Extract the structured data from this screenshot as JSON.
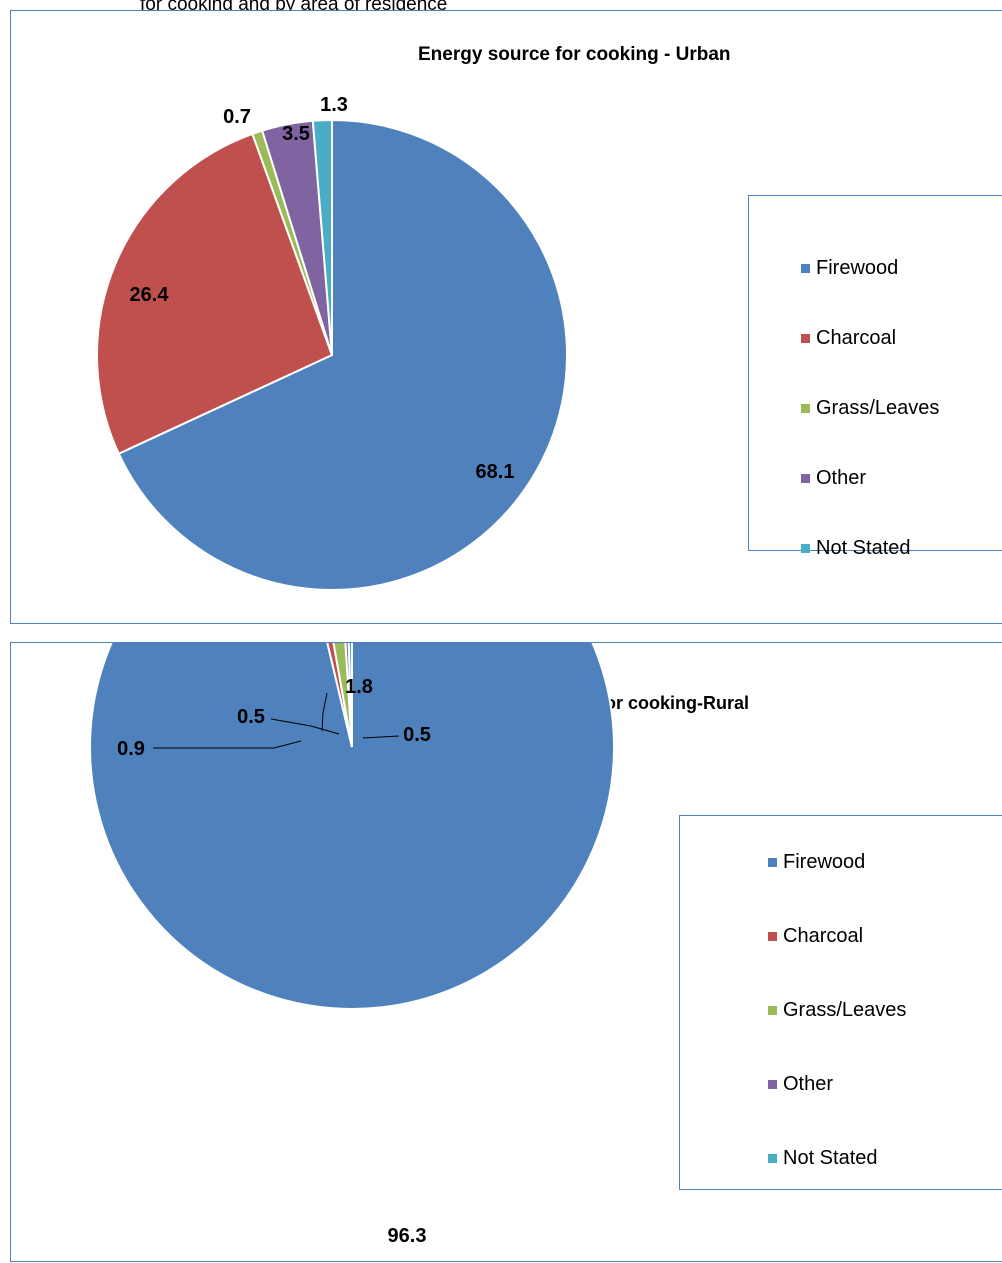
{
  "caption": "for cooking and by area of residence",
  "chart_data": [
    {
      "type": "pie",
      "title": "Energy source for cooking -  Urban",
      "categories": [
        "Firewood",
        "Charcoal",
        "Grass/Leaves",
        "Other",
        "Not Stated"
      ],
      "values": [
        68.1,
        26.4,
        0.7,
        3.5,
        1.3
      ],
      "labels": [
        "68.1",
        "26.4",
        "0.7",
        "3.5",
        "1.3"
      ],
      "colors": [
        "#4f81bd",
        "#c0504d",
        "#9bbb59",
        "#8064a2",
        "#4bacc6"
      ],
      "legend": "right",
      "start_angle_deg": 0,
      "direction": "clockwise"
    },
    {
      "type": "pie",
      "title": "Energy source for cooking-Rural",
      "categories": [
        "Firewood",
        "Charcoal",
        "Grass/Leaves",
        "Other",
        "Not Stated"
      ],
      "values": [
        96.3,
        0.9,
        1.8,
        0.5,
        0.5
      ],
      "labels": [
        "96.3",
        "0.9",
        "1.8",
        "0.5",
        "0.5"
      ],
      "colors": [
        "#4f81bd",
        "#c0504d",
        "#9bbb59",
        "#8064a2",
        "#4bacc6"
      ],
      "legend": "right",
      "start_angle_deg": 0,
      "direction": "clockwise"
    }
  ]
}
